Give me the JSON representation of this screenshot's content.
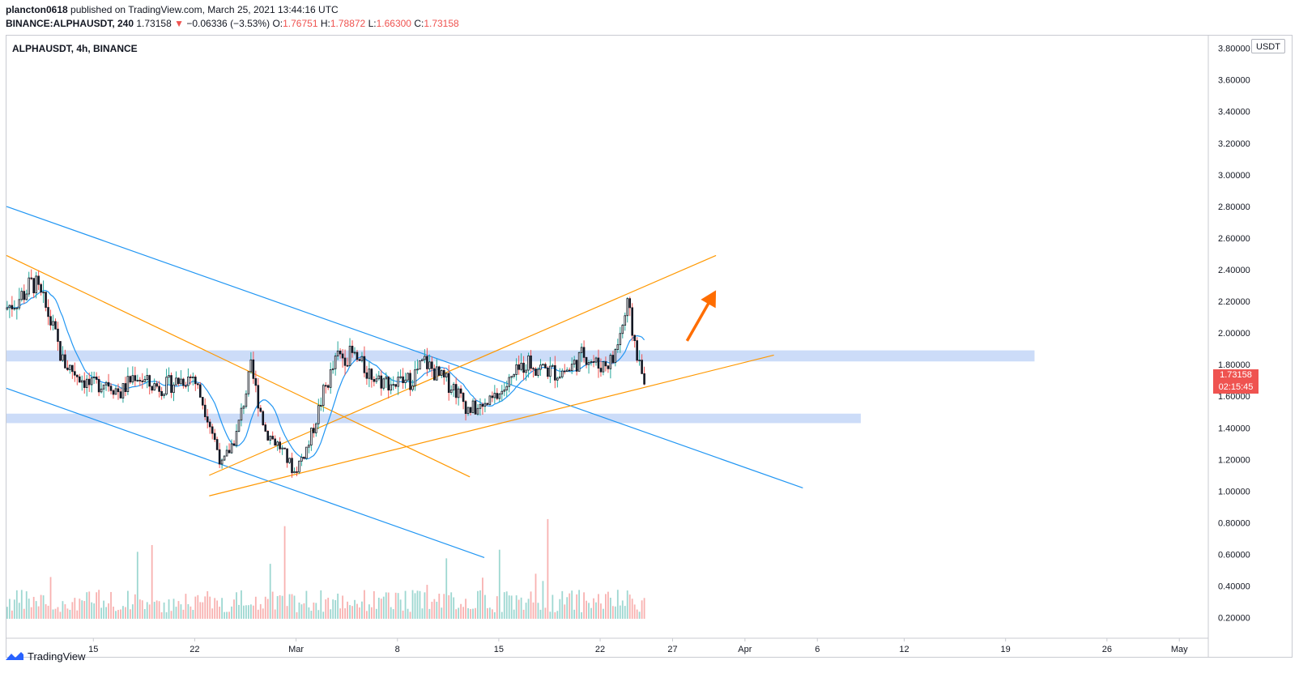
{
  "header": {
    "publisher_user": "plancton0618",
    "publisher_rest": "published on TradingView.com, March 25, 2021 13:44:16 UTC",
    "symbol": "BINANCE:ALPHAUSDT, 240",
    "last": "1.73158",
    "change": "−0.06336 (−3.53%)",
    "o_label": "O:",
    "o": "1.76751",
    "h_label": "H:",
    "h": "1.78872",
    "l_label": "L:",
    "l": "1.66300",
    "c_label": "C:",
    "c": "1.73158"
  },
  "pane_title": "ALPHAUSDT, 4h, BINANCE",
  "unit_badge": "USDT",
  "price_badge": {
    "price": "1.73158",
    "countdown": "02:15:45"
  },
  "footer": {
    "brand": "TradingView",
    "logo_icon": "tradingview-logo-icon"
  },
  "colors": {
    "up": "#26a69a",
    "down": "#ef5350",
    "trend_blue": "#2196f3",
    "trend_orange": "#ff9800",
    "zone": "#bbd0f5",
    "arrow": "#ff6d00",
    "ma": "#2196f3",
    "candle_body_up": "#ffffff",
    "candle_body_down": "#131722"
  },
  "chart_data": {
    "type": "candlestick",
    "symbol": "ALPHAUSDT",
    "interval": "4h",
    "exchange": "BINANCE",
    "y_ticks": [
      "3.80000",
      "3.60000",
      "3.40000",
      "3.20000",
      "3.00000",
      "2.80000",
      "2.60000",
      "2.40000",
      "2.20000",
      "2.00000",
      "1.80000",
      "1.60000",
      "1.40000",
      "1.20000",
      "1.00000",
      "0.80000",
      "0.60000",
      "0.40000",
      "0.20000"
    ],
    "ylim": [
      0.07,
      3.88
    ],
    "x_labels": [
      "15",
      "22",
      "Mar",
      "8",
      "15",
      "22",
      "27",
      "Apr",
      "6",
      "12",
      "19",
      "26",
      "May"
    ],
    "x_label_dates": [
      "2021-02-15",
      "2021-02-22",
      "2021-03-01",
      "2021-03-08",
      "2021-03-15",
      "2021-03-22",
      "2021-03-27",
      "2021-04-01",
      "2021-04-06",
      "2021-04-12",
      "2021-04-19",
      "2021-04-26",
      "2021-05-01"
    ],
    "x_range": [
      "2021-02-09",
      "2021-05-03"
    ],
    "candle_start": "2021-02-09",
    "candle_end": "2021-03-25",
    "price_path": [
      [
        "2021-02-09",
        2.15
      ],
      [
        "2021-02-10",
        2.22
      ],
      [
        "2021-02-11",
        2.32
      ],
      [
        "2021-02-12",
        2.12
      ],
      [
        "2021-02-13",
        1.82
      ],
      [
        "2021-02-14",
        1.74
      ],
      [
        "2021-02-15",
        1.66
      ],
      [
        "2021-02-16",
        1.7
      ],
      [
        "2021-02-17",
        1.62
      ],
      [
        "2021-02-18",
        1.74
      ],
      [
        "2021-02-19",
        1.67
      ],
      [
        "2021-02-20",
        1.66
      ],
      [
        "2021-02-21",
        1.7
      ],
      [
        "2021-02-22",
        1.73
      ],
      [
        "2021-02-23",
        1.48
      ],
      [
        "2021-02-24",
        1.16
      ],
      [
        "2021-02-25",
        1.36
      ],
      [
        "2021-02-26",
        1.77
      ],
      [
        "2021-02-27",
        1.38
      ],
      [
        "2021-02-28",
        1.28
      ],
      [
        "2021-03-01",
        1.12
      ],
      [
        "2021-03-02",
        1.3
      ],
      [
        "2021-03-03",
        1.62
      ],
      [
        "2021-03-04",
        1.85
      ],
      [
        "2021-03-05",
        1.86
      ],
      [
        "2021-03-06",
        1.76
      ],
      [
        "2021-03-07",
        1.7
      ],
      [
        "2021-03-08",
        1.68
      ],
      [
        "2021-03-09",
        1.7
      ],
      [
        "2021-03-10",
        1.82
      ],
      [
        "2021-03-11",
        1.72
      ],
      [
        "2021-03-12",
        1.66
      ],
      [
        "2021-03-13",
        1.52
      ],
      [
        "2021-03-14",
        1.52
      ],
      [
        "2021-03-15",
        1.6
      ],
      [
        "2021-03-16",
        1.7
      ],
      [
        "2021-03-17",
        1.82
      ],
      [
        "2021-03-18",
        1.78
      ],
      [
        "2021-03-19",
        1.75
      ],
      [
        "2021-03-20",
        1.77
      ],
      [
        "2021-03-21",
        1.87
      ],
      [
        "2021-03-22",
        1.79
      ],
      [
        "2021-03-23",
        1.83
      ],
      [
        "2021-03-24",
        2.16
      ],
      [
        "2021-03-25",
        1.73
      ]
    ],
    "trendlines": [
      {
        "color": "blue",
        "from": [
          "2021-02-09",
          2.8
        ],
        "to": [
          "2021-04-05",
          1.02
        ]
      },
      {
        "color": "blue",
        "from": [
          "2021-02-09",
          1.65
        ],
        "to": [
          "2021-03-14",
          0.58
        ]
      },
      {
        "color": "orange",
        "from": [
          "2021-02-09",
          2.49
        ],
        "to": [
          "2021-03-13",
          1.09
        ]
      },
      {
        "color": "orange",
        "from": [
          "2021-02-23",
          1.1
        ],
        "to": [
          "2021-03-30",
          2.49
        ]
      },
      {
        "color": "orange",
        "from": [
          "2021-02-23",
          0.97
        ],
        "to": [
          "2021-04-03",
          1.86
        ]
      }
    ],
    "zones": [
      {
        "from": "2021-02-09",
        "to": "2021-04-21",
        "low": 1.82,
        "high": 1.89
      },
      {
        "from": "2021-02-09",
        "to": "2021-04-09",
        "low": 1.43,
        "high": 1.49
      }
    ],
    "arrow": {
      "from": [
        "2021-03-28",
        1.95
      ],
      "to": [
        "2021-03-30",
        2.27
      ]
    },
    "last_price": 1.73158,
    "grid": false,
    "volume": true
  }
}
